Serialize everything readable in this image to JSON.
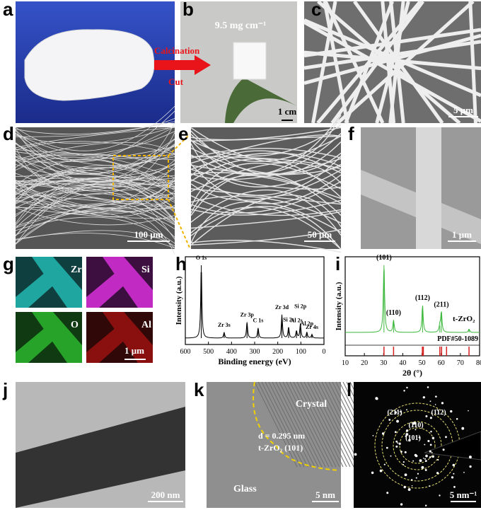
{
  "panels": {
    "a": {
      "label": "a",
      "annotations": [
        "Calcination",
        "Cut"
      ]
    },
    "b": {
      "label": "b",
      "density": "9.5 mg cm⁻¹",
      "scale_bar": "1 cm"
    },
    "c": {
      "label": "c",
      "scale_bar": "5 μm"
    },
    "d": {
      "label": "d",
      "scale_bar": "100 μm"
    },
    "e": {
      "label": "e",
      "scale_bar": "50 μm"
    },
    "f": {
      "label": "f",
      "scale_bar": "1 μm"
    },
    "g": {
      "label": "g",
      "elements": [
        "Zr",
        "Si",
        "O",
        "Al"
      ],
      "scale_bar": "1 μm"
    },
    "h": {
      "label": "h",
      "chart": {
        "type": "line",
        "x_label": "Binding energy (eV)",
        "y_label": "Intensity (a.u.)",
        "xlim": [
          600,
          0
        ],
        "xticks": [
          600,
          500,
          400,
          300,
          200,
          100,
          0
        ],
        "peaks": [
          {
            "label": "O 1s",
            "x": 531,
            "height": 100
          },
          {
            "label": "Zr 3s",
            "x": 432,
            "height": 8
          },
          {
            "label": "Zr 3p",
            "x": 333,
            "height": 22
          },
          {
            "label": "C 1s",
            "x": 285,
            "height": 14
          },
          {
            "label": "Zr 3d",
            "x": 182,
            "height": 32
          },
          {
            "label": "Si 2s",
            "x": 153,
            "height": 15
          },
          {
            "label": "Al 2s",
            "x": 119,
            "height": 10
          },
          {
            "label": "Si 2p",
            "x": 102,
            "height": 20
          },
          {
            "label": "Al 2p",
            "x": 74,
            "height": 8
          },
          {
            "label": "Zr 4s",
            "x": 52,
            "height": 5
          }
        ]
      }
    },
    "i": {
      "label": "i",
      "chart": {
        "type": "line",
        "x_label": "2θ (°)",
        "y_label": "Intensity (a.u.)",
        "xlim": [
          10,
          80
        ],
        "xticks": [
          10,
          20,
          30,
          40,
          50,
          60,
          70,
          80
        ],
        "phase": "t-ZrO₂",
        "reference": "PDF#50-1089",
        "color": "#3cb83c",
        "reference_color": "#d62020",
        "peaks": [
          {
            "label": "(101)",
            "x": 30.2,
            "height": 100
          },
          {
            "label": "(110)",
            "x": 35.2,
            "height": 18
          },
          {
            "label": "(112)",
            "x": 50.3,
            "height": 40
          },
          {
            "label": "(211)",
            "x": 60.1,
            "height": 30
          },
          {
            "label": null,
            "x": 59.3,
            "height": 10
          },
          {
            "label": null,
            "x": 74.5,
            "height": 5
          }
        ],
        "reference_lines": [
          30.2,
          35.2,
          50.2,
          50.7,
          59.3,
          60.2,
          62.8,
          74.5
        ]
      }
    },
    "j": {
      "label": "j",
      "scale_bar": "200 nm"
    },
    "k": {
      "label": "k",
      "phase_labels": [
        "Crystal",
        "Glass"
      ],
      "spacing": "d = 0.295 nm",
      "plane": "t-ZrO₂ (101)",
      "scale_bar": "5 nm"
    },
    "l": {
      "label": "l",
      "rings": [
        "(211)",
        "(112)",
        "(110)",
        "(101)"
      ],
      "scale_bar": "5 nm⁻¹"
    }
  }
}
